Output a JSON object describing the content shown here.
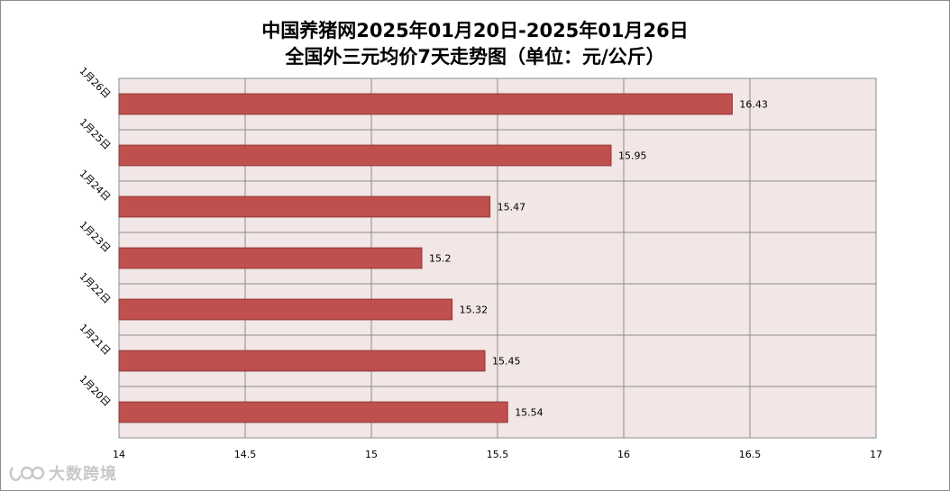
{
  "chart_data": {
    "type": "bar",
    "orientation": "horizontal",
    "title_line1": "中国养猪网2025年01月20日-2025年01月26日",
    "title_line2": "全国外三元均价7天走势图（单位：元/公斤）",
    "categories": [
      "1月20日",
      "1月21日",
      "1月22日",
      "1月23日",
      "1月24日",
      "1月25日",
      "1月26日"
    ],
    "values": [
      15.54,
      15.45,
      15.32,
      15.2,
      15.47,
      15.95,
      16.43
    ],
    "value_labels": [
      "15.54",
      "15.45",
      "15.32",
      "15.2",
      "15.47",
      "15.95",
      "16.43"
    ],
    "xlim": [
      14,
      17
    ],
    "x_ticks": [
      "14",
      "14.5",
      "15",
      "15.5",
      "16",
      "16.5",
      "17"
    ],
    "grid": true,
    "legend": "none",
    "bar_color": "#c0504d",
    "bar_border_color": "#8c3836",
    "plot_background": "#f2e6e6",
    "grid_color": "#8c8c8c"
  },
  "watermark": {
    "text": "大数跨境",
    "icon": "logo-icon"
  }
}
